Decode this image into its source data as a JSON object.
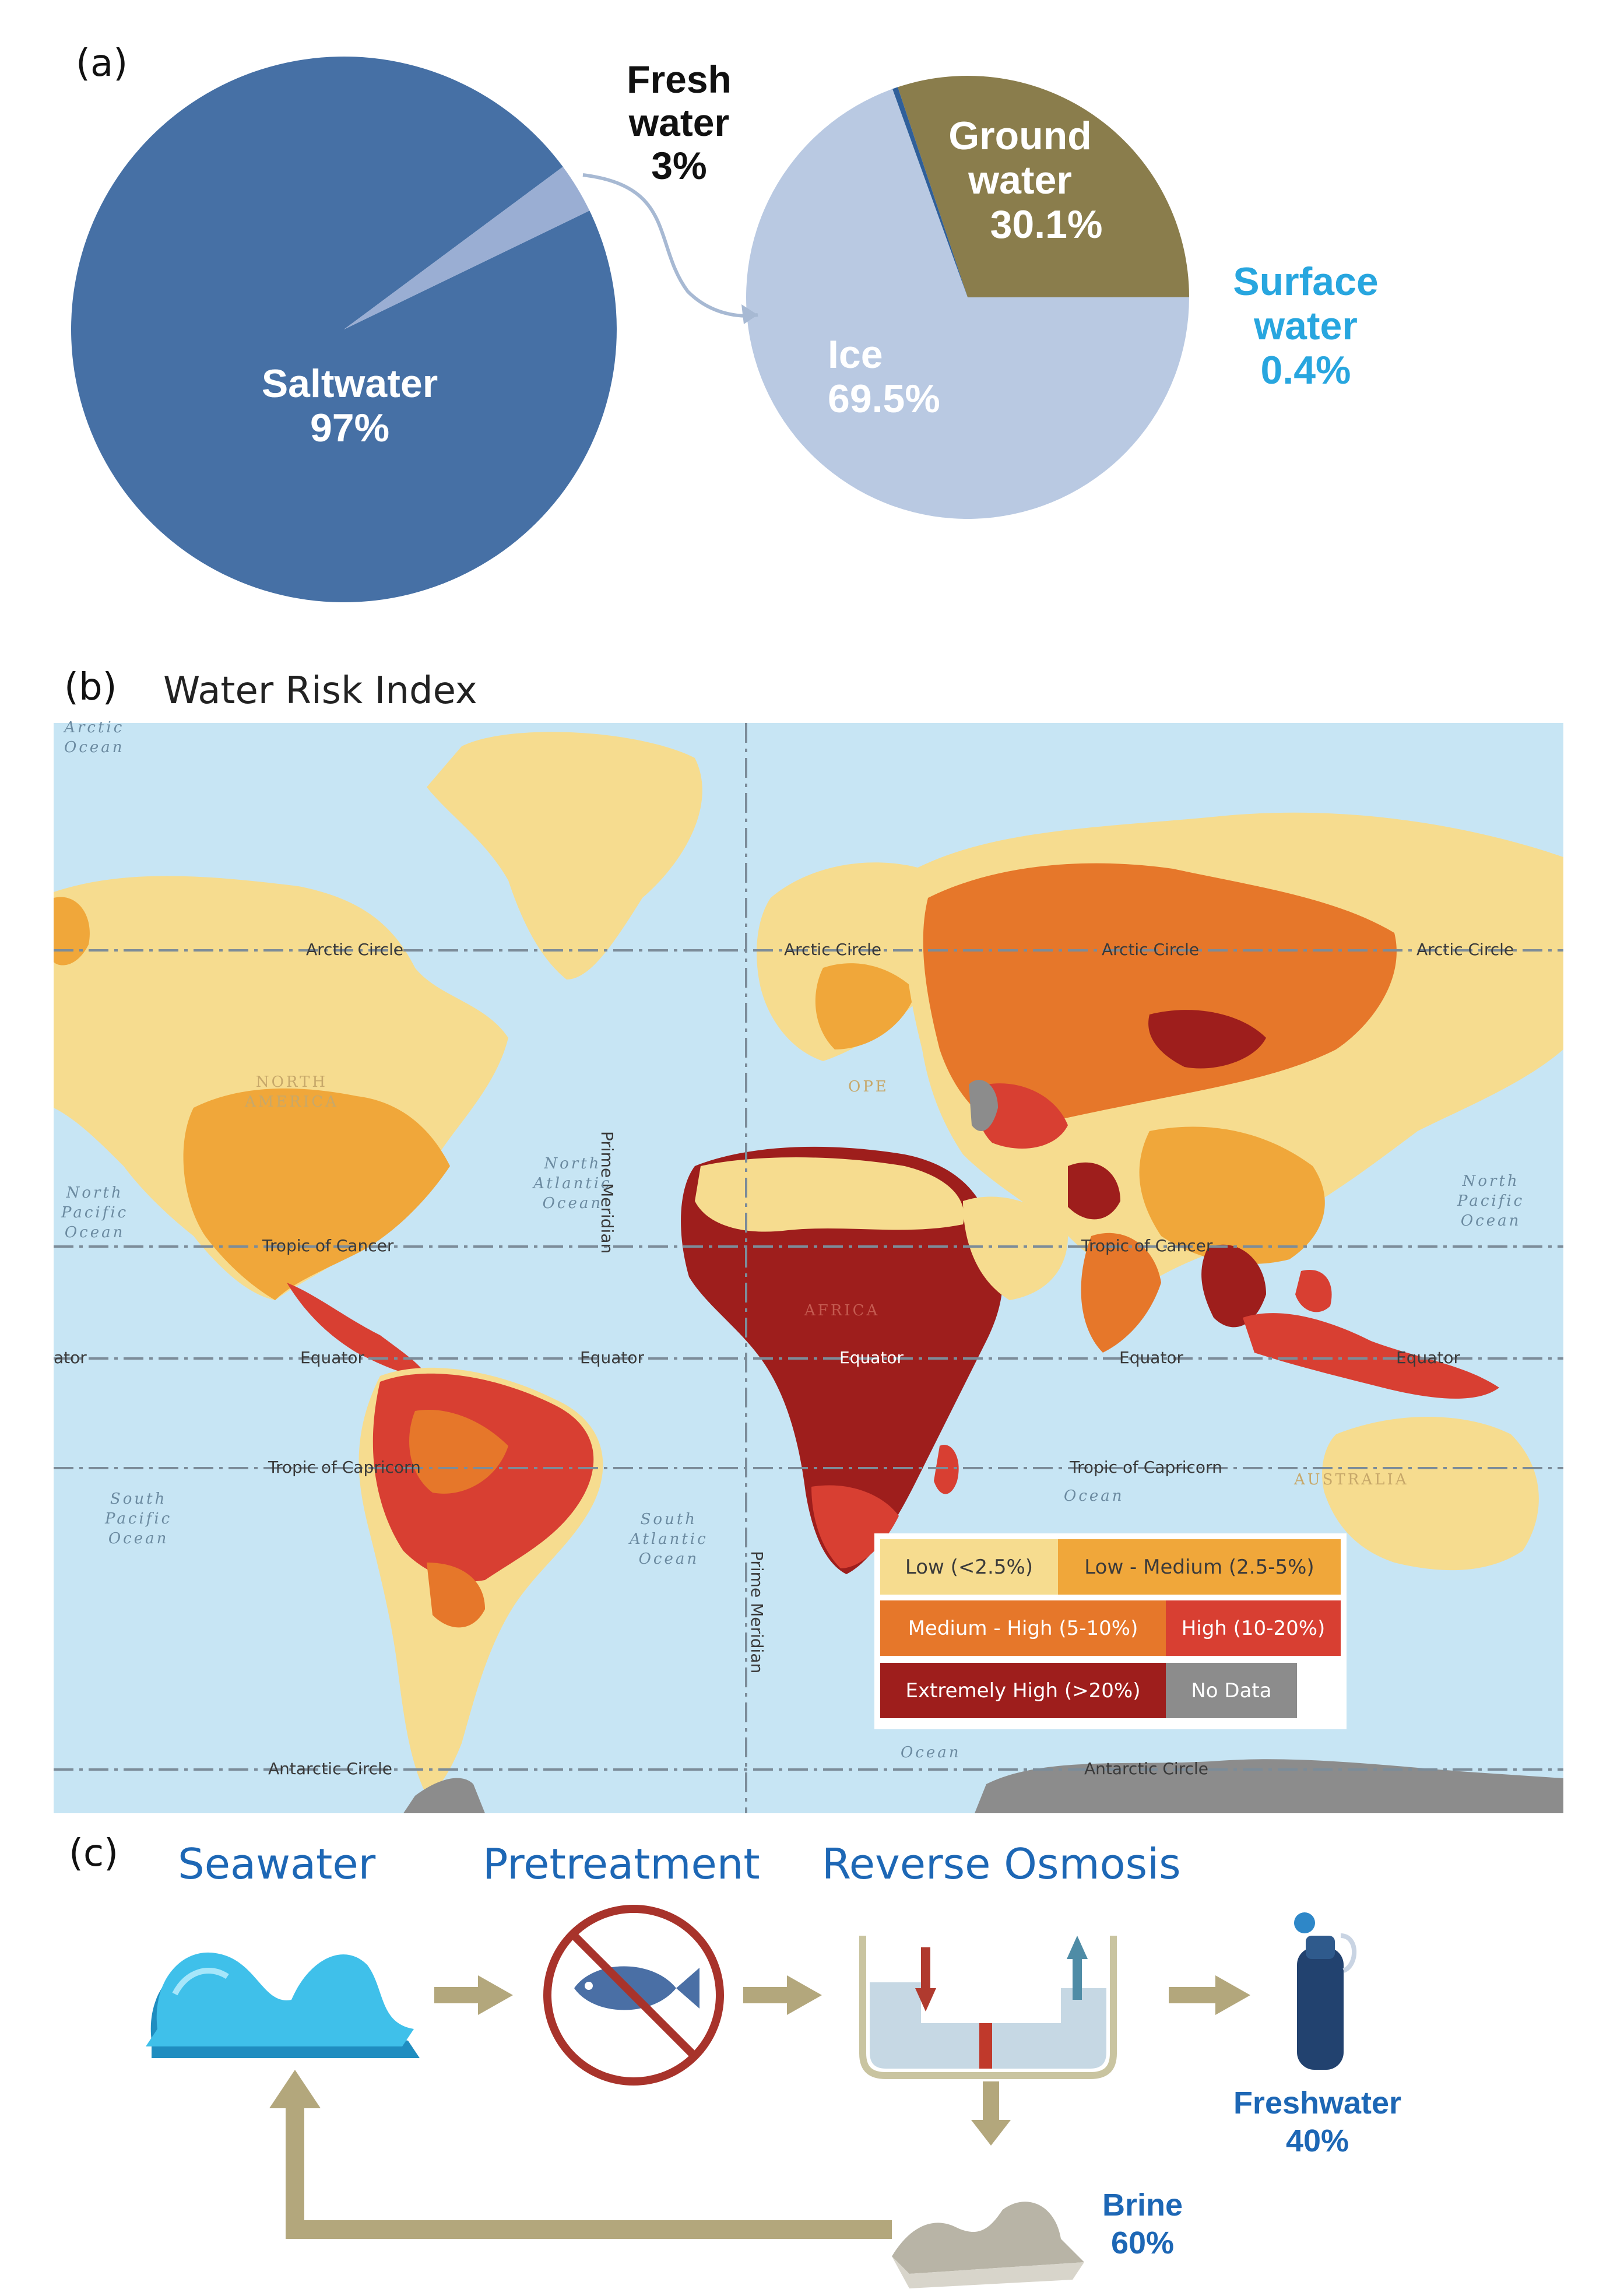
{
  "panel_a": {
    "label": "(a)",
    "saltwater": {
      "name": "Saltwater",
      "value": "97%"
    },
    "freshwater": {
      "name_line1": "Fresh",
      "name_line2": "water",
      "value": "3%"
    },
    "breakdown": {
      "ground": {
        "line1": "Ground",
        "line2": "water",
        "value": "30.1%"
      },
      "ice": {
        "name": "Ice",
        "value": "69.5%"
      },
      "surface": {
        "line1": "Surface",
        "line2": "water",
        "value": "0.4%"
      }
    },
    "chart_data": [
      {
        "type": "pie",
        "categories": [
          "Saltwater",
          "Fresh water"
        ],
        "values": [
          97,
          3
        ],
        "colors": [
          "#4670a5",
          "#9aaed3"
        ]
      },
      {
        "type": "pie",
        "categories": [
          "Ground water",
          "Ice",
          "Surface water"
        ],
        "values": [
          30.1,
          69.5,
          0.4
        ],
        "colors": [
          "#8a7d4c",
          "#b9c9e2",
          "#2f5f9a"
        ]
      }
    ]
  },
  "panel_b": {
    "label": "(b)",
    "title": "Water Risk Index",
    "lines": {
      "arctic": "Arctic Circle",
      "cancer": "Tropic of Cancer",
      "equator": "Equator",
      "capricorn": "Tropic of Capricorn",
      "antarctic": "Antarctic Circle",
      "meridian": "Prime Meridian",
      "equator_partial": "ator"
    },
    "oceans": {
      "arctic": "Arctic\nOcean",
      "north_pacific_left": "North\nPacific\nOcean",
      "north_atlantic": "North\nAtlantic\nOcean",
      "north_pacific_right": "North\nPacific\nOcean",
      "south_pacific": "South\nPacific\nOcean",
      "south_atlantic": "South\nAtlantic\nOcean",
      "indian": "Ocean",
      "southern": "Ocean"
    },
    "regions": {
      "north_america": "NORTH\nAMERICA",
      "africa": "AFRICA",
      "australia": "AUSTRALIA",
      "europe": "OPE"
    },
    "legend": [
      {
        "label": "Low (<2.5%)",
        "color": "#f6dc8f",
        "text_color": "#3a3a3a"
      },
      {
        "label": "Low - Medium (2.5-5%)",
        "color": "#f0a73a",
        "text_color": "#3a3a3a"
      },
      {
        "label": "Medium - High (5-10%)",
        "color": "#e6772a",
        "text_color": "#ffffff"
      },
      {
        "label": "High (10-20%)",
        "color": "#d83f32",
        "text_color": "#ffffff"
      },
      {
        "label": "Extremely High (>20%)",
        "color": "#9e1e1c",
        "text_color": "#ffffff"
      },
      {
        "label": "No Data",
        "color": "#8c8c8c",
        "text_color": "#ffffff"
      }
    ],
    "colors": {
      "ocean": "#bfe1f2",
      "low": "#f6dc8f",
      "low_medium": "#f0a73a",
      "medium_high": "#e6772a",
      "high": "#d83f32",
      "extreme": "#9e1e1c",
      "no_data": "#8c8c8c"
    }
  },
  "panel_c": {
    "label": "(c)",
    "steps": [
      "Seawater",
      "Pretreatment",
      "Reverse Osmosis"
    ],
    "freshwater": {
      "name": "Freshwater",
      "value": "40%"
    },
    "brine": {
      "name": "Brine",
      "value": "60%"
    },
    "colors": {
      "title": "#1d67b5",
      "arrow": "#b3a77c",
      "wave": "#2aa3d4",
      "prohibit": "#a8332b"
    }
  }
}
